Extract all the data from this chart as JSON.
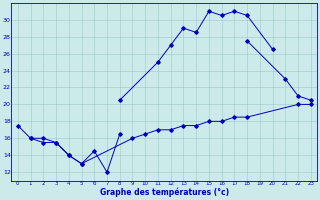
{
  "background_color": "#cceaea",
  "line_color": "#0000bb",
  "ylim": [
    11,
    32
  ],
  "xlim": [
    -0.5,
    23.5
  ],
  "yticks": [
    12,
    14,
    16,
    18,
    20,
    22,
    24,
    26,
    28,
    30
  ],
  "xticks": [
    0,
    1,
    2,
    3,
    4,
    5,
    6,
    7,
    8,
    9,
    10,
    11,
    12,
    13,
    14,
    15,
    16,
    17,
    18,
    19,
    20,
    21,
    22,
    23
  ],
  "xlabel": "Graphe des températures (°c)",
  "series": [
    {
      "x": [
        0,
        1,
        2,
        3,
        4,
        5,
        6,
        7,
        8
      ],
      "y": [
        17.5,
        16.0,
        16.0,
        15.5,
        14.0,
        13.0,
        14.5,
        12.0,
        16.5
      ]
    },
    {
      "x": [
        8,
        11,
        12,
        13,
        14,
        15,
        16,
        17,
        18,
        20
      ],
      "y": [
        20.5,
        25.0,
        27.0,
        29.0,
        28.5,
        31.0,
        30.5,
        31.0,
        30.5,
        26.5
      ]
    },
    {
      "x": [
        18,
        21,
        22,
        23
      ],
      "y": [
        27.5,
        23.0,
        21.0,
        20.5
      ]
    },
    {
      "x": [
        1,
        2,
        3,
        4,
        5,
        9,
        10,
        11,
        12,
        13,
        14,
        15,
        16,
        17,
        18,
        22,
        23
      ],
      "y": [
        16.0,
        15.5,
        15.5,
        14.0,
        13.0,
        16.0,
        16.5,
        17.0,
        17.0,
        17.5,
        17.5,
        18.0,
        18.0,
        18.5,
        18.5,
        20.0,
        20.0
      ]
    }
  ]
}
